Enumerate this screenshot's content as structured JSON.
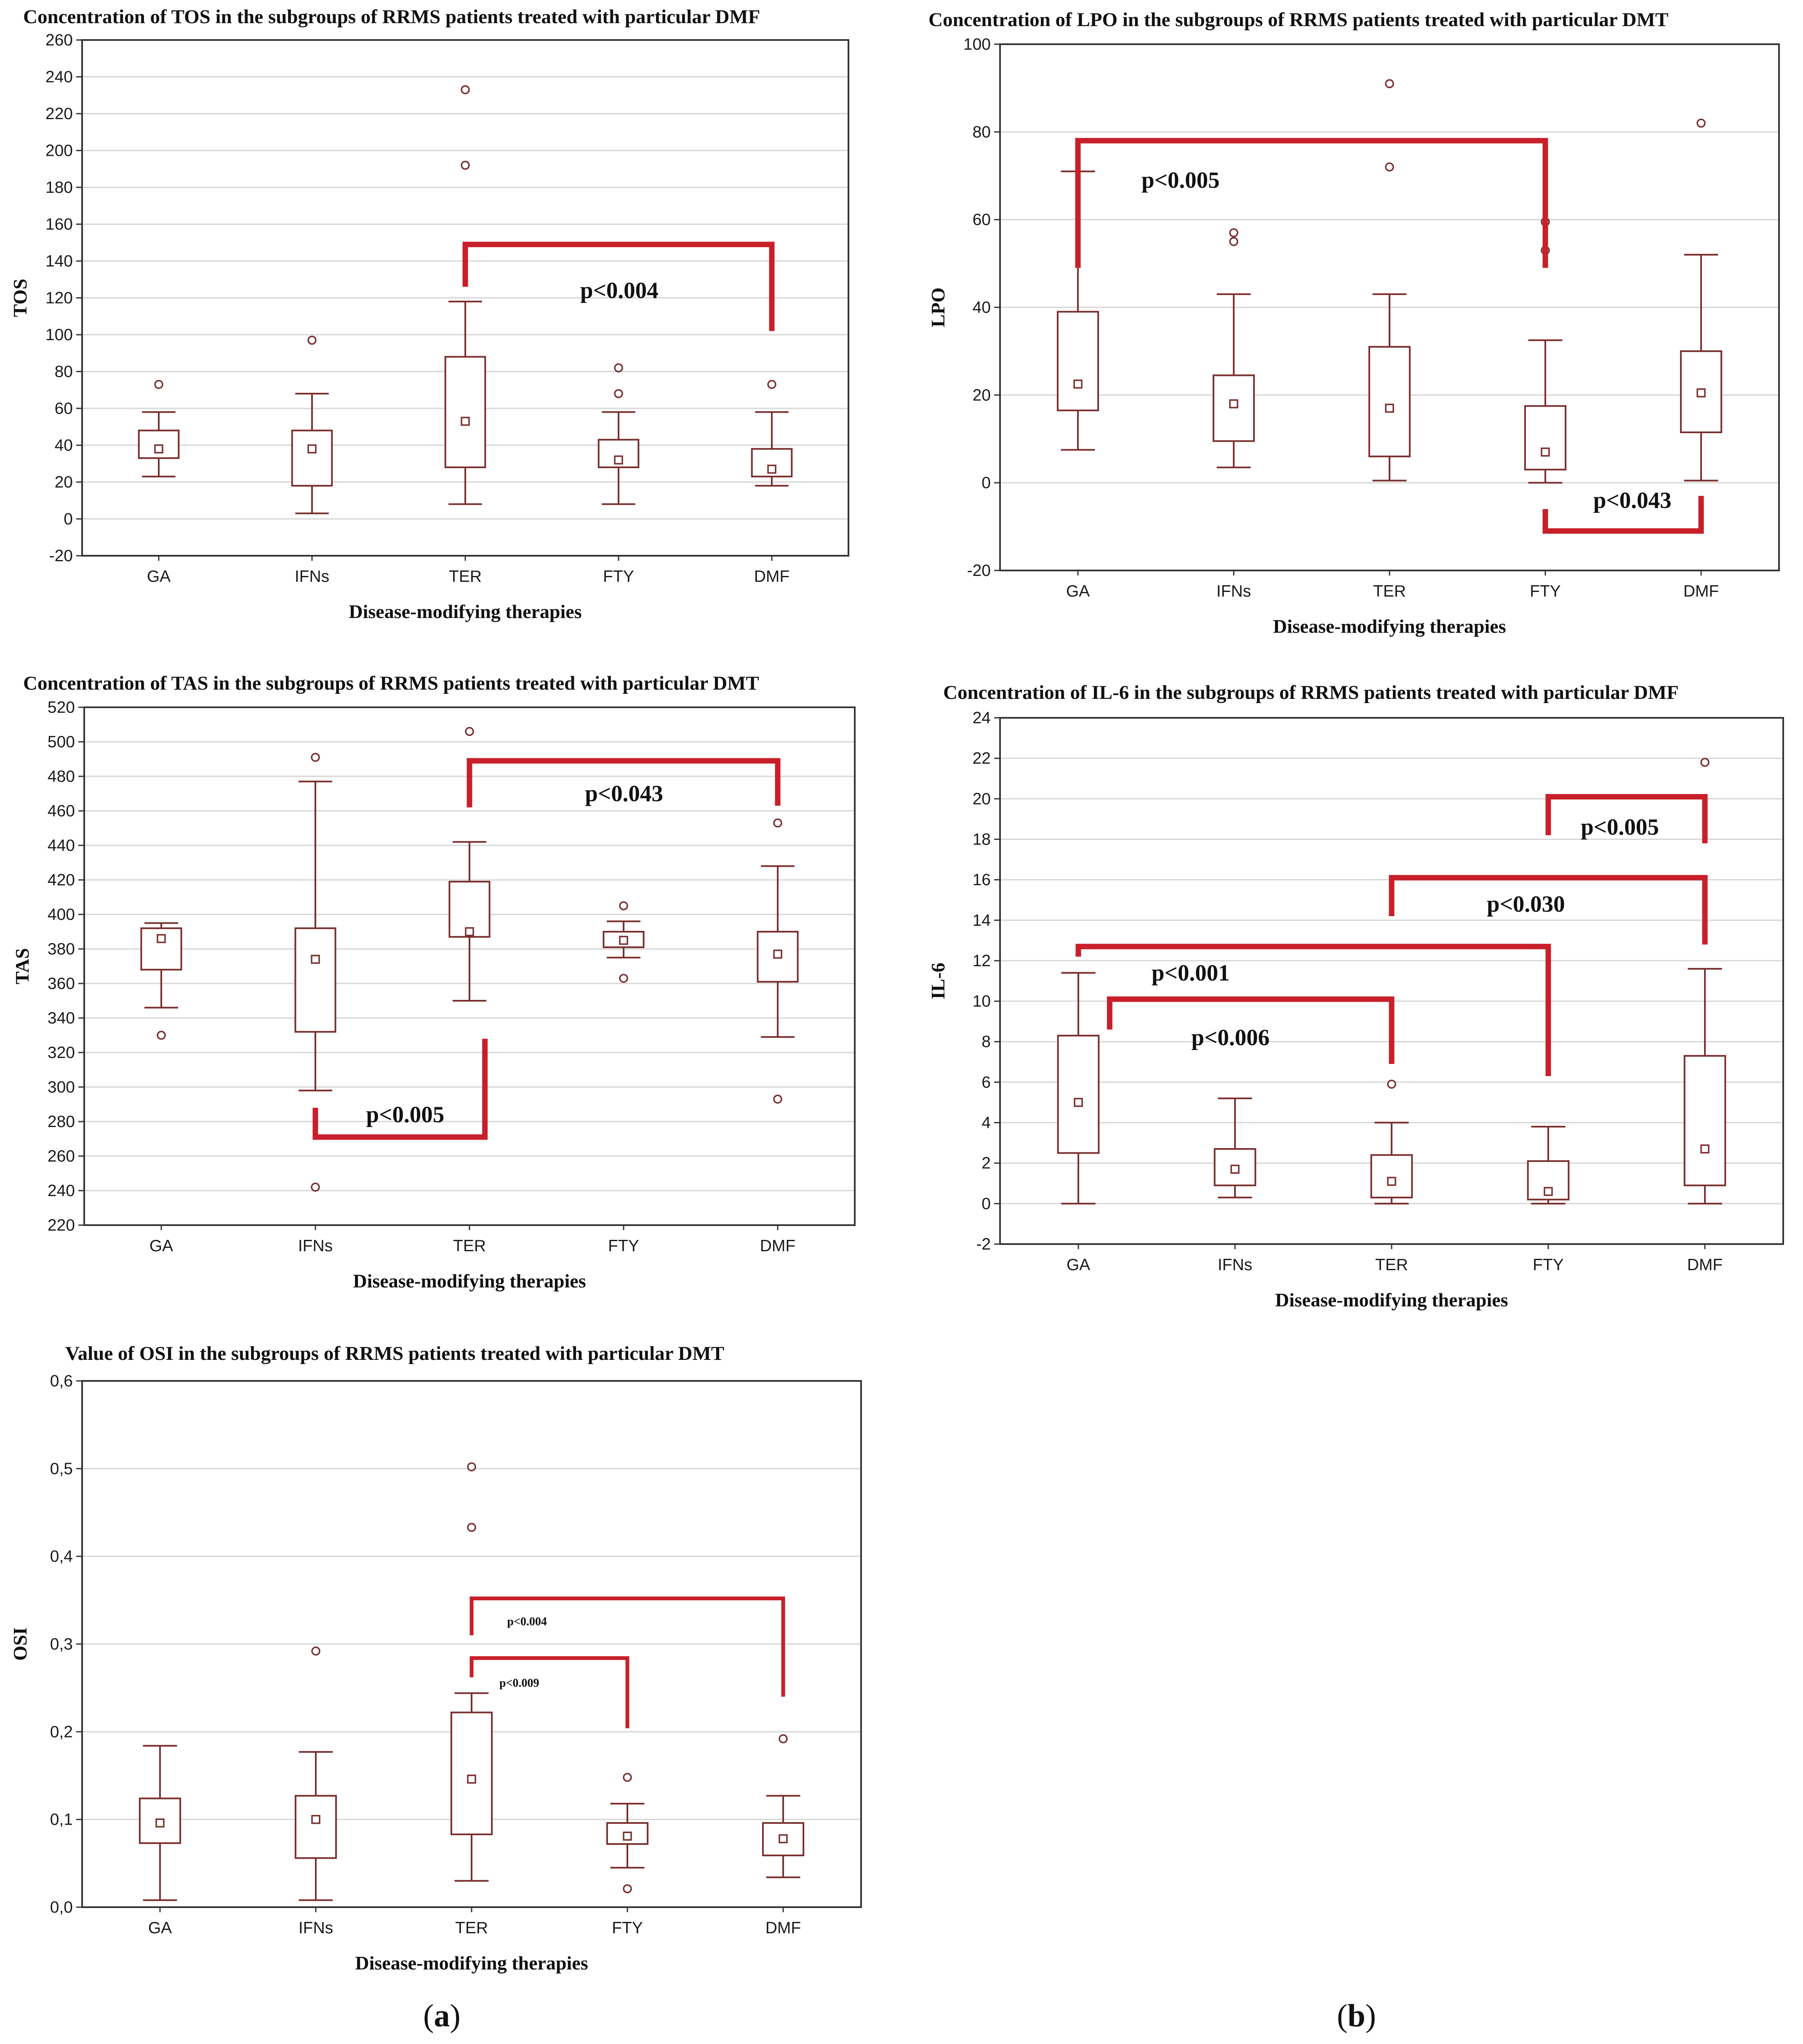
{
  "panel_labels": {
    "a": {
      "open": "(",
      "letter": "a",
      "close": ")"
    },
    "b": {
      "open": "(",
      "letter": "b",
      "close": ")"
    }
  },
  "colors": {
    "box": "#7a2e2e",
    "bracket": "#c8202a",
    "grid": "#d6d6d6",
    "axis": "#333333"
  },
  "chart_data": [
    {
      "id": "tos",
      "type": "box",
      "title": "Concentration of TOS in the subgroups of RRMS patients treated with particular DMF",
      "xlabel": "Disease-modifying therapies",
      "ylabel": "TOS",
      "categories": [
        "GA",
        "IFNs",
        "TER",
        "FTY",
        "DMF"
      ],
      "ylim": [
        -20,
        260
      ],
      "yticks": [
        -20,
        0,
        20,
        40,
        60,
        80,
        100,
        120,
        140,
        160,
        180,
        200,
        220,
        240,
        260
      ],
      "ytick_labels": [
        "-20",
        "0",
        "20",
        "40",
        "60",
        "80",
        "100",
        "120",
        "140",
        "160",
        "180",
        "200",
        "220",
        "240",
        "260"
      ],
      "boxes": [
        {
          "median": 38,
          "q1": 33,
          "q3": 48,
          "whisker_low": 23,
          "whisker_high": 58,
          "outliers": [
            73
          ]
        },
        {
          "median": 38,
          "q1": 18,
          "q3": 48,
          "whisker_low": 3,
          "whisker_high": 68,
          "outliers": [
            97
          ]
        },
        {
          "median": 53,
          "q1": 28,
          "q3": 88,
          "whisker_low": 8,
          "whisker_high": 118,
          "outliers": [
            192,
            233
          ]
        },
        {
          "median": 32,
          "q1": 28,
          "q3": 43,
          "whisker_low": 8,
          "whisker_high": 58,
          "outliers": [
            68,
            82
          ]
        },
        {
          "median": 27,
          "q1": 23,
          "q3": 38,
          "whisker_low": 18,
          "whisker_high": 58,
          "outliers": [
            73
          ]
        }
      ],
      "brackets": [
        {
          "from": 2,
          "to": 4,
          "y": 149,
          "left_end": 126,
          "right_end": 102,
          "label": "p<0.004",
          "label_y": 124,
          "label_x_frac": 0.32
        }
      ]
    },
    {
      "id": "lpo",
      "type": "box",
      "title": "Concentration of LPO in the subgroups of RRMS patients treated with particular DMT",
      "xlabel": "Disease-modifying therapies",
      "ylabel": "LPO",
      "categories": [
        "GA",
        "IFNs",
        "TER",
        "FTY",
        "DMF"
      ],
      "ylim": [
        -20,
        100
      ],
      "yticks": [
        -20,
        0,
        20,
        40,
        60,
        80,
        100
      ],
      "ytick_labels": [
        "-20",
        "0",
        "20",
        "40",
        "60",
        "80",
        "100"
      ],
      "boxes": [
        {
          "median": 22.5,
          "q1": 16.5,
          "q3": 39,
          "whisker_low": 7.5,
          "whisker_high": 71,
          "outliers": []
        },
        {
          "median": 18,
          "q1": 9.5,
          "q3": 24.5,
          "whisker_low": 3.5,
          "whisker_high": 43,
          "outliers": [
            55,
            57
          ]
        },
        {
          "median": 17,
          "q1": 6,
          "q3": 31,
          "whisker_low": 0.5,
          "whisker_high": 43,
          "outliers": [
            72,
            91
          ]
        },
        {
          "median": 7,
          "q1": 3,
          "q3": 17.5,
          "whisker_low": 0,
          "whisker_high": 32.5,
          "outliers": [
            53,
            59.5
          ]
        },
        {
          "median": 20.5,
          "q1": 11.5,
          "q3": 30,
          "whisker_low": 0.5,
          "whisker_high": 52,
          "outliers": [
            82
          ]
        }
      ],
      "brackets": [
        {
          "from": 0,
          "to": 3,
          "y": 78,
          "left_end": 49,
          "right_end": 49,
          "label": "p<0.005",
          "label_y": 69,
          "label_x_frac": 0.1
        },
        {
          "from": 3,
          "to": 4,
          "y": -11,
          "left_end": -6,
          "right_end": -3,
          "label": "p<0.043",
          "label_y": -4,
          "label_x_frac": 0.2
        }
      ]
    },
    {
      "id": "tas",
      "type": "box",
      "title": "Concentration of TAS in the subgroups of RRMS patients treated with particular DMT",
      "xlabel": "Disease-modifying therapies",
      "ylabel": "TAS",
      "categories": [
        "GA",
        "IFNs",
        "TER",
        "FTY",
        "DMF"
      ],
      "ylim": [
        220,
        520
      ],
      "yticks": [
        220,
        240,
        260,
        280,
        300,
        320,
        340,
        360,
        380,
        400,
        420,
        440,
        460,
        480,
        500,
        520
      ],
      "ytick_labels": [
        "220",
        "240",
        "260",
        "280",
        "300",
        "320",
        "340",
        "360",
        "380",
        "400",
        "420",
        "440",
        "460",
        "480",
        "500",
        "520"
      ],
      "boxes": [
        {
          "median": 386,
          "q1": 368,
          "q3": 392,
          "whisker_low": 346,
          "whisker_high": 395,
          "outliers": [
            330
          ]
        },
        {
          "median": 374,
          "q1": 332,
          "q3": 392,
          "whisker_low": 298,
          "whisker_high": 477,
          "outliers": [
            242,
            491
          ]
        },
        {
          "median": 390,
          "q1": 387,
          "q3": 419,
          "whisker_low": 350,
          "whisker_high": 442,
          "outliers": [
            506
          ]
        },
        {
          "median": 385,
          "q1": 381,
          "q3": 390,
          "whisker_low": 375,
          "whisker_high": 396,
          "outliers": [
            363,
            405
          ]
        },
        {
          "median": 377,
          "q1": 361,
          "q3": 390,
          "whisker_low": 329,
          "whisker_high": 428,
          "outliers": [
            293,
            453
          ]
        }
      ],
      "brackets": [
        {
          "from": 2,
          "to": 4,
          "y": 489,
          "left_end": 462,
          "right_end": 463,
          "label": "p<0.043",
          "label_y": 470,
          "label_x_frac": 0.32
        },
        {
          "from": 1,
          "to": 2.1,
          "y": 271,
          "left_end": 288,
          "right_end": 328,
          "label": "p<0.005",
          "label_y": 284,
          "label_x_frac": 0.2
        }
      ]
    },
    {
      "id": "il6",
      "type": "box",
      "title": "Concentration of IL-6 in the subgroups of RRMS patients treated with particular DMF",
      "xlabel": "Disease-modifying therapies",
      "ylabel": "IL-6",
      "categories": [
        "GA",
        "IFNs",
        "TER",
        "FTY",
        "DMF"
      ],
      "ylim": [
        -2,
        24
      ],
      "yticks": [
        -2,
        0,
        2,
        4,
        6,
        8,
        10,
        12,
        14,
        16,
        18,
        20,
        22,
        24
      ],
      "ytick_labels": [
        "-2",
        "0",
        "2",
        "4",
        "6",
        "8",
        "10",
        "12",
        "14",
        "16",
        "18",
        "20",
        "22",
        "24"
      ],
      "boxes": [
        {
          "median": 5,
          "q1": 2.5,
          "q3": 8.3,
          "whisker_low": 0,
          "whisker_high": 11.4,
          "outliers": []
        },
        {
          "median": 1.7,
          "q1": 0.9,
          "q3": 2.7,
          "whisker_low": 0.3,
          "whisker_high": 5.2,
          "outliers": []
        },
        {
          "median": 1.1,
          "q1": 0.3,
          "q3": 2.4,
          "whisker_low": 0,
          "whisker_high": 4,
          "outliers": [
            5.9
          ]
        },
        {
          "median": 0.6,
          "q1": 0.2,
          "q3": 2.1,
          "whisker_low": 0,
          "whisker_high": 3.8,
          "outliers": []
        },
        {
          "median": 2.7,
          "q1": 0.9,
          "q3": 7.3,
          "whisker_low": 0,
          "whisker_high": 11.6,
          "outliers": [
            21.8
          ]
        }
      ],
      "brackets": [
        {
          "from": 3,
          "to": 4,
          "y": 20.1,
          "left_end": 18.2,
          "right_end": 17.8,
          "label": "p<0.005",
          "label_y": 18.6,
          "label_x_frac": 0.1
        },
        {
          "from": 2,
          "to": 4,
          "y": 16.1,
          "left_end": 14.2,
          "right_end": 12.8,
          "label": "p<0.030",
          "label_y": 14.8,
          "label_x_frac": 0.25
        },
        {
          "from": 0,
          "to": 3,
          "y": 12.7,
          "left_end": 12.2,
          "right_end": 6.3,
          "label": "p<0.001",
          "label_y": 11.4,
          "label_x_frac": 0.12
        },
        {
          "from": 0.2,
          "to": 2,
          "y": 10.1,
          "left_end": 8.6,
          "right_end": 6.9,
          "label": "p<0.006",
          "label_y": 8.2,
          "label_x_frac": 0.23
        }
      ]
    },
    {
      "id": "osi",
      "type": "box",
      "title": "Value of OSI in the subgroups of RRMS patients treated with particular DMT",
      "xlabel": "Disease-modifying therapies",
      "ylabel": "OSI",
      "categories": [
        "GA",
        "IFNs",
        "TER",
        "FTY",
        "DMF"
      ],
      "ylim": [
        0,
        0.6
      ],
      "yticks": [
        0,
        0.1,
        0.2,
        0.3,
        0.4,
        0.5,
        0.6
      ],
      "ytick_labels": [
        "0,0",
        "0,1",
        "0,2",
        "0,3",
        "0,4",
        "0,5",
        "0,6"
      ],
      "boxes": [
        {
          "median": 0.096,
          "q1": 0.073,
          "q3": 0.124,
          "whisker_low": 0.008,
          "whisker_high": 0.184,
          "outliers": []
        },
        {
          "median": 0.1,
          "q1": 0.056,
          "q3": 0.127,
          "whisker_low": 0.008,
          "whisker_high": 0.177,
          "outliers": [
            0.292
          ]
        },
        {
          "median": 0.146,
          "q1": 0.083,
          "q3": 0.222,
          "whisker_low": 0.03,
          "whisker_high": 0.244,
          "outliers": [
            0.433,
            0.502
          ]
        },
        {
          "median": 0.081,
          "q1": 0.072,
          "q3": 0.096,
          "whisker_low": 0.045,
          "whisker_high": 0.118,
          "outliers": [
            0.021,
            0.148
          ]
        },
        {
          "median": 0.078,
          "q1": 0.059,
          "q3": 0.096,
          "whisker_low": 0.034,
          "whisker_high": 0.127,
          "outliers": [
            0.192
          ]
        }
      ],
      "brackets": [
        {
          "from": 2,
          "to": 4,
          "y": 0.352,
          "left_end": 0.31,
          "right_end": 0.24,
          "label": "p<0.004",
          "label_y": 0.33,
          "label_x_frac": 0.06,
          "small": true
        },
        {
          "from": 2,
          "to": 3,
          "y": 0.284,
          "left_end": 0.262,
          "right_end": 0.204,
          "label": "p<0.009",
          "label_y": 0.26,
          "label_x_frac": 0.07,
          "small": true
        }
      ]
    }
  ]
}
